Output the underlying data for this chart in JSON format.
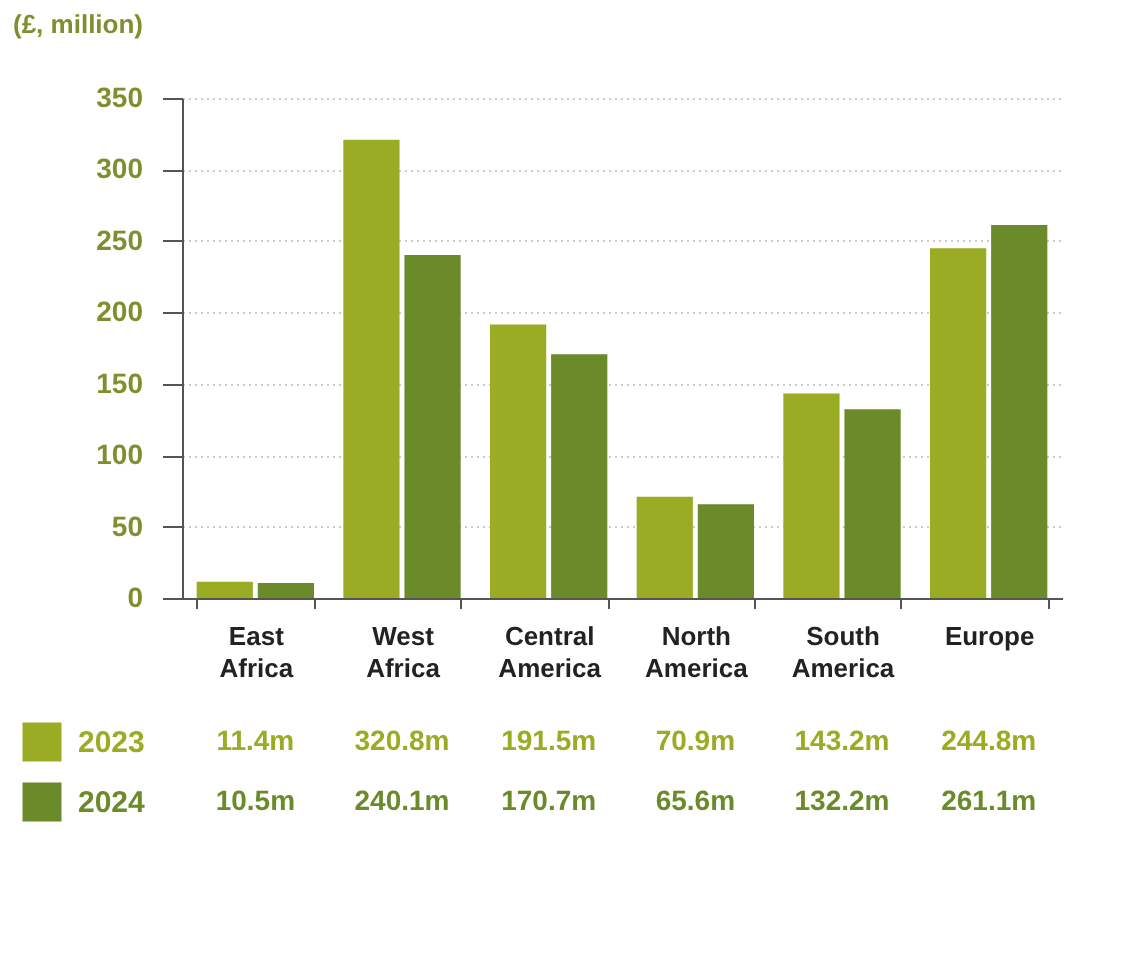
{
  "chart_data": {
    "type": "bar",
    "ylabel": "(£, million)",
    "categories": [
      "East Africa",
      "West Africa",
      "Central America",
      "North America",
      "South America",
      "Europe"
    ],
    "series": [
      {
        "name": "2023",
        "color": "#9aab24",
        "values": [
          11.4,
          320.8,
          191.5,
          70.9,
          143.2,
          244.8
        ],
        "value_labels": [
          "11.4m",
          "320.8m",
          "191.5m",
          "70.9m",
          "143.2m",
          "244.8m"
        ]
      },
      {
        "name": "2024",
        "color": "#6b8a2a",
        "values": [
          10.5,
          240.1,
          170.7,
          65.6,
          132.2,
          261.1
        ],
        "value_labels": [
          "10.5m",
          "240.1m",
          "170.7m",
          "65.6m",
          "132.2m",
          "261.1m"
        ]
      }
    ],
    "ylim": [
      0,
      350
    ],
    "yticks": [
      0,
      50,
      100,
      150,
      200,
      250,
      300,
      350
    ],
    "grid": "y",
    "legend": "bottom left"
  }
}
